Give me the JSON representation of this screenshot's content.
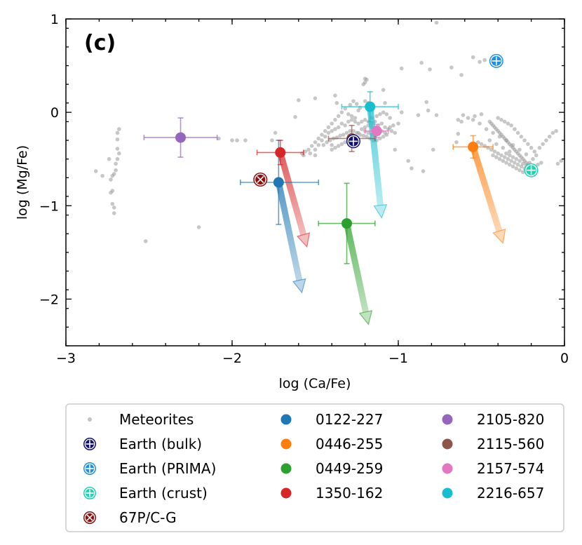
{
  "chart_data": {
    "type": "scatter",
    "panel_label": "(c)",
    "xlabel": "log (Ca/Fe)",
    "ylabel": "log (Mg/Fe)",
    "xlim": [
      -3,
      0
    ],
    "ylim": [
      -2.5,
      1
    ],
    "xticks": [
      -3,
      -2,
      -1,
      0
    ],
    "xtick_labels": [
      "−3",
      "−2",
      "−1",
      "0"
    ],
    "yticks": [
      -2,
      -1,
      0,
      1
    ],
    "ytick_labels": [
      "−2",
      "−1",
      "0",
      "1"
    ],
    "meteorites": {
      "name": "Meteorites",
      "color": "#999999",
      "points": [
        [
          -0.77,
          0.96
        ],
        [
          -0.86,
          0.53
        ],
        [
          -0.68,
          0.48
        ],
        [
          -0.55,
          0.59
        ],
        [
          -0.48,
          0.56
        ],
        [
          -0.51,
          0.54
        ],
        [
          -0.81,
          0.46
        ],
        [
          -0.98,
          0.47
        ],
        [
          -0.62,
          0.4
        ],
        [
          -1.2,
          0.36
        ],
        [
          -1.19,
          0.35
        ],
        [
          -1.2,
          0.32
        ],
        [
          -1.21,
          0.3
        ],
        [
          -1.09,
          0.24
        ],
        [
          -1.6,
          0.13
        ],
        [
          -1.62,
          -0.05
        ],
        [
          -1.5,
          0.15
        ],
        [
          -1.38,
          0.18
        ],
        [
          -1.37,
          0.1
        ],
        [
          -1.08,
          0.1
        ],
        [
          -0.98,
          0.0
        ],
        [
          -0.88,
          -0.03
        ],
        [
          -0.83,
          0.11
        ],
        [
          -0.82,
          0.02
        ],
        [
          -0.77,
          -0.03
        ],
        [
          -0.61,
          -0.03
        ],
        [
          -0.64,
          -0.08
        ],
        [
          -0.64,
          -0.23
        ],
        [
          -0.65,
          -0.32
        ],
        [
          -0.79,
          -0.4
        ],
        [
          -0.85,
          -0.63
        ],
        [
          -0.92,
          -0.6
        ],
        [
          -0.94,
          -0.52
        ],
        [
          -1.02,
          -0.4
        ],
        [
          -1.4,
          -0.35
        ],
        [
          -1.92,
          -0.3
        ],
        [
          -1.97,
          -0.3
        ],
        [
          -2.0,
          -0.3
        ],
        [
          -2.08,
          -0.28
        ],
        [
          -1.76,
          -0.3
        ],
        [
          -1.74,
          -0.22
        ],
        [
          -2.2,
          -1.23
        ],
        [
          -2.52,
          -1.38
        ],
        [
          -2.68,
          -0.18
        ],
        [
          -2.69,
          -0.29
        ],
        [
          -2.69,
          -0.39
        ],
        [
          -2.68,
          -0.44
        ],
        [
          -2.69,
          -0.5
        ],
        [
          -2.7,
          -0.55
        ],
        [
          -2.7,
          -0.62
        ],
        [
          -2.71,
          -0.66
        ],
        [
          -2.72,
          -0.68
        ],
        [
          -2.73,
          -0.72
        ],
        [
          -2.74,
          -0.5
        ],
        [
          -2.72,
          -0.84
        ],
        [
          -2.73,
          -0.86
        ],
        [
          -2.72,
          -0.98
        ],
        [
          -2.71,
          -1.02
        ],
        [
          -2.71,
          -1.08
        ],
        [
          -2.82,
          -0.63
        ],
        [
          -2.78,
          -0.68
        ],
        [
          -2.69,
          -0.22
        ],
        [
          -1.5,
          -0.4
        ],
        [
          -1.5,
          -0.46
        ],
        [
          -1.53,
          -0.44
        ],
        [
          -1.57,
          -0.46
        ],
        [
          -1.48,
          -0.35
        ],
        [
          -1.46,
          -0.3
        ],
        [
          -1.44,
          -0.26
        ],
        [
          -1.42,
          -0.22
        ],
        [
          -1.4,
          -0.2
        ],
        [
          -1.38,
          -0.18
        ],
        [
          -1.36,
          -0.16
        ],
        [
          -1.34,
          -0.12
        ],
        [
          -1.32,
          -0.14
        ],
        [
          -1.3,
          -0.1
        ],
        [
          -1.28,
          -0.08
        ],
        [
          -1.26,
          -0.1
        ],
        [
          -1.24,
          -0.12
        ],
        [
          -1.22,
          -0.1
        ],
        [
          -1.2,
          -0.08
        ],
        [
          -1.18,
          -0.1
        ],
        [
          -1.16,
          -0.12
        ],
        [
          -1.14,
          -0.1
        ],
        [
          -1.12,
          -0.14
        ],
        [
          -1.1,
          -0.12
        ],
        [
          -1.08,
          -0.16
        ],
        [
          -1.06,
          -0.18
        ],
        [
          -1.04,
          -0.2
        ],
        [
          -1.02,
          -0.22
        ],
        [
          -1.45,
          -0.35
        ],
        [
          -1.43,
          -0.32
        ],
        [
          -1.41,
          -0.3
        ],
        [
          -1.39,
          -0.28
        ],
        [
          -1.37,
          -0.27
        ],
        [
          -1.35,
          -0.25
        ],
        [
          -1.33,
          -0.24
        ],
        [
          -1.31,
          -0.22
        ],
        [
          -1.29,
          -0.2
        ],
        [
          -1.27,
          -0.2
        ],
        [
          -1.25,
          -0.22
        ],
        [
          -1.23,
          -0.24
        ],
        [
          -1.21,
          -0.25
        ],
        [
          -1.19,
          -0.26
        ],
        [
          -1.17,
          -0.28
        ],
        [
          -1.15,
          -0.3
        ],
        [
          -1.13,
          -0.3
        ],
        [
          -1.11,
          -0.28
        ],
        [
          -1.09,
          -0.26
        ],
        [
          -1.07,
          -0.24
        ],
        [
          -1.4,
          -0.4
        ],
        [
          -1.38,
          -0.38
        ],
        [
          -1.36,
          -0.36
        ],
        [
          -1.34,
          -0.34
        ],
        [
          -1.32,
          -0.32
        ],
        [
          -1.3,
          -0.3
        ],
        [
          -1.28,
          -0.28
        ],
        [
          -1.26,
          -0.26
        ],
        [
          -1.24,
          -0.22
        ],
        [
          -1.22,
          -0.18
        ],
        [
          -1.2,
          -0.16
        ],
        [
          -1.18,
          -0.14
        ],
        [
          -1.16,
          -0.16
        ],
        [
          -1.14,
          -0.18
        ],
        [
          -1.12,
          -0.2
        ],
        [
          -1.3,
          -0.02
        ],
        [
          -1.32,
          0.04
        ],
        [
          -1.29,
          0.08
        ],
        [
          -1.27,
          0.12
        ],
        [
          -1.25,
          0.09
        ],
        [
          -1.23,
          0.05
        ],
        [
          -1.34,
          0.0
        ],
        [
          -1.36,
          -0.04
        ],
        [
          -1.38,
          -0.08
        ],
        [
          -1.4,
          -0.12
        ],
        [
          -1.42,
          -0.16
        ],
        [
          -1.44,
          -0.2
        ],
        [
          -1.46,
          -0.24
        ],
        [
          -1.48,
          -0.28
        ],
        [
          -1.5,
          -0.32
        ],
        [
          -1.52,
          -0.36
        ],
        [
          -1.54,
          -0.4
        ],
        [
          -1.56,
          -0.42
        ],
        [
          -1.58,
          -0.44
        ],
        [
          -1.2,
          -0.2
        ],
        [
          -1.18,
          -0.22
        ],
        [
          -1.16,
          -0.24
        ],
        [
          -1.14,
          -0.26
        ],
        [
          -1.1,
          -0.2
        ],
        [
          -1.08,
          -0.22
        ],
        [
          -1.05,
          -0.16
        ],
        [
          -1.03,
          -0.14
        ],
        [
          -1.0,
          -0.12
        ],
        [
          -1.16,
          -0.06
        ],
        [
          -1.13,
          -0.04
        ],
        [
          -1.11,
          -0.02
        ],
        [
          -1.09,
          0.0
        ],
        [
          -1.07,
          -0.02
        ],
        [
          -1.05,
          -0.06
        ],
        [
          -1.2,
          0.12
        ],
        [
          -1.18,
          0.1
        ],
        [
          -1.24,
          0.02
        ],
        [
          -1.28,
          -0.04
        ],
        [
          -1.26,
          -0.06
        ],
        [
          -0.45,
          -0.1
        ],
        [
          -0.44,
          -0.12
        ],
        [
          -0.43,
          -0.14
        ],
        [
          -0.42,
          -0.16
        ],
        [
          -0.41,
          -0.18
        ],
        [
          -0.4,
          -0.2
        ],
        [
          -0.39,
          -0.22
        ],
        [
          -0.38,
          -0.24
        ],
        [
          -0.37,
          -0.26
        ],
        [
          -0.36,
          -0.28
        ],
        [
          -0.35,
          -0.3
        ],
        [
          -0.34,
          -0.32
        ],
        [
          -0.33,
          -0.34
        ],
        [
          -0.32,
          -0.36
        ],
        [
          -0.31,
          -0.38
        ],
        [
          -0.3,
          -0.4
        ],
        [
          -0.29,
          -0.42
        ],
        [
          -0.28,
          -0.44
        ],
        [
          -0.27,
          -0.46
        ],
        [
          -0.26,
          -0.48
        ],
        [
          -0.25,
          -0.5
        ],
        [
          -0.24,
          -0.52
        ],
        [
          -0.23,
          -0.54
        ],
        [
          -0.22,
          -0.56
        ],
        [
          -0.21,
          -0.58
        ],
        [
          -0.2,
          -0.6
        ],
        [
          -0.22,
          -0.62
        ],
        [
          -0.24,
          -0.6
        ],
        [
          -0.26,
          -0.58
        ],
        [
          -0.28,
          -0.56
        ],
        [
          -0.3,
          -0.54
        ],
        [
          -0.32,
          -0.52
        ],
        [
          -0.34,
          -0.5
        ],
        [
          -0.36,
          -0.48
        ],
        [
          -0.38,
          -0.46
        ],
        [
          -0.4,
          -0.44
        ],
        [
          -0.42,
          -0.42
        ],
        [
          -0.44,
          -0.4
        ],
        [
          -0.46,
          -0.38
        ],
        [
          -0.48,
          -0.36
        ],
        [
          -0.5,
          -0.34
        ],
        [
          -0.52,
          -0.32
        ],
        [
          -0.35,
          -0.44
        ],
        [
          -0.33,
          -0.46
        ],
        [
          -0.31,
          -0.48
        ],
        [
          -0.29,
          -0.5
        ],
        [
          -0.27,
          -0.52
        ],
        [
          -0.25,
          -0.55
        ],
        [
          -0.23,
          -0.57
        ],
        [
          -0.21,
          -0.54
        ],
        [
          -0.19,
          -0.5
        ],
        [
          -0.17,
          -0.46
        ],
        [
          -0.18,
          -0.42
        ],
        [
          -0.2,
          -0.38
        ],
        [
          -0.22,
          -0.34
        ],
        [
          -0.24,
          -0.3
        ],
        [
          -0.26,
          -0.26
        ],
        [
          -0.28,
          -0.22
        ],
        [
          -0.3,
          -0.18
        ],
        [
          -0.32,
          -0.14
        ],
        [
          -0.34,
          -0.12
        ],
        [
          -0.36,
          -0.1
        ],
        [
          -0.38,
          -0.08
        ],
        [
          -0.4,
          -0.06
        ],
        [
          -0.5,
          -0.02
        ],
        [
          -0.54,
          -0.04
        ],
        [
          -0.58,
          -0.06
        ],
        [
          -0.62,
          -0.1
        ],
        [
          -0.27,
          -0.62
        ],
        [
          -0.29,
          -0.6
        ],
        [
          -0.31,
          -0.58
        ],
        [
          -0.33,
          -0.56
        ],
        [
          -0.35,
          -0.54
        ],
        [
          -0.37,
          -0.52
        ],
        [
          -0.39,
          -0.5
        ],
        [
          -0.41,
          -0.48
        ],
        [
          -0.43,
          -0.46
        ],
        [
          -0.15,
          -0.38
        ],
        [
          -0.13,
          -0.34
        ],
        [
          -0.11,
          -0.3
        ],
        [
          -0.09,
          -0.26
        ],
        [
          -0.07,
          -0.22
        ],
        [
          -0.05,
          -0.2
        ],
        [
          -0.18,
          -0.58
        ],
        [
          -0.16,
          -0.56
        ],
        [
          -0.14,
          -0.54
        ],
        [
          -0.04,
          -0.55
        ],
        [
          -0.02,
          -0.52
        ],
        [
          -0.25,
          -0.64
        ],
        [
          -0.2,
          -0.66
        ],
        [
          -0.23,
          -0.45
        ],
        [
          -0.27,
          -0.4
        ],
        [
          -0.31,
          -0.35
        ],
        [
          -0.35,
          -0.3
        ],
        [
          -0.39,
          -0.26
        ],
        [
          -0.43,
          -0.22
        ],
        [
          -0.47,
          -0.18
        ],
        [
          -0.51,
          -0.12
        ],
        [
          -0.55,
          -0.08
        ],
        [
          -0.45,
          -0.3
        ],
        [
          -0.41,
          -0.34
        ],
        [
          -0.37,
          -0.38
        ],
        [
          -0.33,
          -0.42
        ]
      ]
    },
    "references": [
      {
        "name": "Earth (bulk)",
        "x": -1.27,
        "y": -0.31,
        "color": "#12136e",
        "marker": "plus-circle"
      },
      {
        "name": "Earth (PRIMA)",
        "x": -0.41,
        "y": 0.55,
        "color": "#1f8fe5",
        "marker": "plus-circle"
      },
      {
        "name": "Earth (crust)",
        "x": -0.2,
        "y": -0.62,
        "color": "#1fd3b0",
        "marker": "plus-circle"
      },
      {
        "name": "67P/C-G",
        "x": -1.83,
        "y": -0.72,
        "color": "#8b0f10",
        "marker": "x-circle"
      }
    ],
    "series": [
      {
        "name": "0122-227",
        "x": -1.72,
        "y": -0.75,
        "xerr": [
          0.23,
          0.24
        ],
        "yerr": [
          0.45,
          0.45
        ],
        "arrow_to": [
          -1.58,
          -1.93
        ],
        "color": "#1f77b4"
      },
      {
        "name": "0446-255",
        "x": -0.55,
        "y": -0.37,
        "xerr": [
          0.12,
          0.12
        ],
        "yerr": [
          0.12,
          0.12
        ],
        "arrow_to": [
          -0.37,
          -1.4
        ],
        "color": "#ff7f0e"
      },
      {
        "name": "0449-259",
        "x": -1.31,
        "y": -1.19,
        "xerr": [
          0.17,
          0.17
        ],
        "yerr": [
          0.43,
          0.43
        ],
        "arrow_to": [
          -1.18,
          -2.27
        ],
        "color": "#2ca02c"
      },
      {
        "name": "1350-162",
        "x": -1.71,
        "y": -0.43,
        "xerr": [
          0.14,
          0.14
        ],
        "yerr": [
          0.13,
          0.13
        ],
        "arrow_to": [
          -1.55,
          -1.44
        ],
        "color": "#d62728"
      },
      {
        "name": "2105-820",
        "x": -2.31,
        "y": -0.27,
        "xerr": [
          0.22,
          0.22
        ],
        "yerr": [
          0.21,
          0.21
        ],
        "arrow_to": null,
        "color": "#9467bd"
      },
      {
        "name": "2115-560",
        "x": -1.28,
        "y": -0.28,
        "xerr": [
          0.14,
          0.14
        ],
        "yerr": [
          0.14,
          0.14
        ],
        "arrow_to": null,
        "color": "#8c564b"
      },
      {
        "name": "2157-574",
        "x": -1.13,
        "y": -0.2,
        "xerr": [
          0.07,
          0.07
        ],
        "yerr": [
          0.07,
          0.07
        ],
        "arrow_to": null,
        "color": "#e377c2"
      },
      {
        "name": "2216-657",
        "x": -1.17,
        "y": 0.06,
        "xerr": [
          0.17,
          0.17
        ],
        "yerr": [
          0.16,
          0.16
        ],
        "arrow_to": [
          -1.1,
          -1.13
        ],
        "color": "#17becf"
      }
    ],
    "legend": {
      "location": "below",
      "columns": [
        [
          "Meteorites",
          "Earth (bulk)",
          "Earth (PRIMA)",
          "Earth (crust)",
          "67P/C-G"
        ],
        [
          "0122-227",
          "0446-255",
          "0449-259",
          "1350-162"
        ],
        [
          "2105-820",
          "2115-560",
          "2157-574",
          "2216-657"
        ]
      ]
    }
  }
}
